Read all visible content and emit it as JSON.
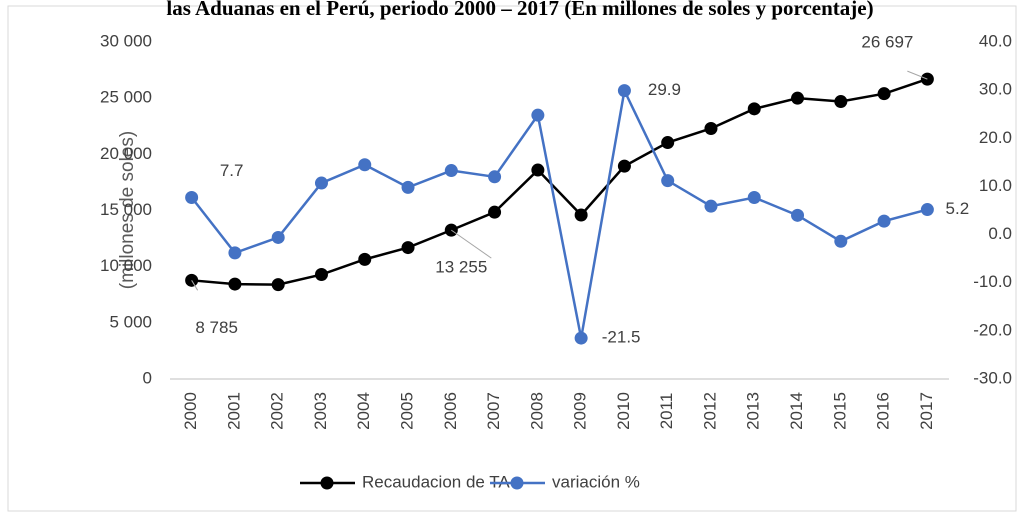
{
  "chart_data": {
    "type": "line",
    "title": "las Aduanas en el Perú, periodo 2000 – 2017 (En millones de soles y porcentaje)",
    "y_label": "(millones de soles)",
    "categories": [
      "2000",
      "2001",
      "2002",
      "2003",
      "2004",
      "2005",
      "2006",
      "2007",
      "2008",
      "2009",
      "2010",
      "2011",
      "2012",
      "2013",
      "2014",
      "2015",
      "2016",
      "2017"
    ],
    "series": [
      {
        "name": "Recaudacion de TA",
        "color": "#000000",
        "values": [
          8785,
          8450,
          8400,
          9300,
          10650,
          11700,
          13255,
          14850,
          18600,
          14600,
          18950,
          21050,
          22300,
          24050,
          25000,
          24700,
          25400,
          26697
        ],
        "value_labels": [
          "8 785",
          null,
          null,
          null,
          null,
          null,
          "13 255",
          null,
          null,
          null,
          null,
          null,
          null,
          null,
          null,
          null,
          null,
          "26 697"
        ]
      },
      {
        "name": "variación %",
        "color": "#4472c4",
        "axis": "y2",
        "values": [
          7.7,
          -3.8,
          -0.6,
          10.7,
          14.5,
          9.8,
          13.3,
          12.0,
          24.8,
          -21.5,
          29.9,
          11.2,
          5.9,
          7.7,
          4.0,
          -1.4,
          2.8,
          5.2
        ],
        "value_labels": [
          "7.7",
          null,
          null,
          null,
          null,
          null,
          null,
          null,
          null,
          "-21.5",
          "29.9",
          null,
          null,
          null,
          null,
          null,
          null,
          "5.2"
        ]
      }
    ],
    "ylim": [
      0,
      30000
    ],
    "yticks": [
      0,
      {
        "value": 5000,
        "label": "5 000"
      },
      {
        "value": 10000,
        "label": "10 000"
      },
      {
        "value": 15000,
        "label": "15 000"
      },
      {
        "value": 20000,
        "label": "20 000"
      },
      {
        "value": 25000,
        "label": "25 000"
      },
      {
        "value": 30000,
        "label": "30 000"
      }
    ],
    "y2lim": [
      -30,
      40
    ],
    "y2ticks": [
      {
        "value": -30,
        "label": "-30.0"
      },
      {
        "value": -20,
        "label": "-20.0"
      },
      {
        "value": -10,
        "label": "-10.0"
      },
      {
        "value": 0,
        "label": "0.0"
      },
      {
        "value": 10,
        "label": "10.0"
      },
      {
        "value": 20,
        "label": "20.0"
      },
      {
        "value": 30,
        "label": "30.0"
      },
      {
        "value": 40,
        "label": "40.0"
      }
    ],
    "grid": false,
    "legend": "bottom"
  }
}
